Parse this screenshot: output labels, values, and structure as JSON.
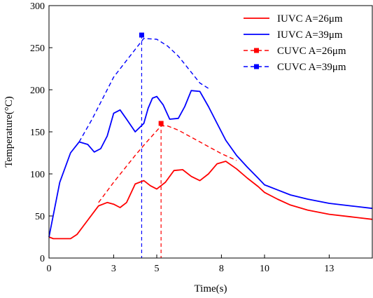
{
  "chart_data": {
    "type": "line",
    "xlabel": "Time(s)",
    "ylabel": "Temperature(°C)",
    "xlim": [
      0,
      15
    ],
    "ylim": [
      0,
      300
    ],
    "x_ticks": [
      0,
      3,
      5,
      8,
      10,
      13
    ],
    "y_ticks": [
      0,
      50,
      100,
      150,
      200,
      250,
      300
    ],
    "grid": false,
    "legend_position": "top-right",
    "series": [
      {
        "name": "IUVC A=26μm",
        "color": "#ff0000",
        "style": "solid",
        "x": [
          0,
          0.2,
          1.0,
          1.3,
          1.8,
          2.3,
          2.7,
          3.0,
          3.3,
          3.6,
          4.0,
          4.4,
          4.7,
          5.0,
          5.4,
          5.8,
          6.2,
          6.6,
          7.0,
          7.4,
          7.8,
          8.2,
          8.7,
          9.2,
          9.7,
          10.0,
          10.6,
          11.2,
          12.0,
          13.0,
          14.0,
          15.0
        ],
        "y": [
          25,
          23,
          23,
          28,
          45,
          62,
          66,
          64,
          60,
          66,
          88,
          92,
          86,
          82,
          90,
          104,
          105,
          97,
          92,
          100,
          112,
          115,
          106,
          95,
          85,
          78,
          70,
          63,
          57,
          52,
          49,
          46
        ]
      },
      {
        "name": "IUVC A=39μm",
        "color": "#0000ff",
        "style": "solid",
        "x": [
          0,
          0.5,
          1.0,
          1.4,
          1.8,
          2.1,
          2.4,
          2.7,
          3.0,
          3.3,
          3.6,
          4.0,
          4.4,
          4.6,
          4.8,
          5.0,
          5.3,
          5.6,
          6.0,
          6.3,
          6.6,
          7.0,
          7.4,
          7.8,
          8.2,
          8.7,
          9.2,
          9.7,
          10.0,
          10.6,
          11.2,
          12.0,
          13.0,
          14.0,
          15.0
        ],
        "y": [
          25,
          90,
          125,
          138,
          135,
          126,
          130,
          145,
          172,
          176,
          165,
          150,
          160,
          178,
          190,
          192,
          182,
          165,
          166,
          180,
          199,
          198,
          180,
          160,
          140,
          122,
          108,
          95,
          87,
          81,
          75,
          70,
          65,
          62,
          59
        ]
      },
      {
        "name": "CUVC A=26μm",
        "color": "#ff0000",
        "style": "dashed",
        "x": [
          2.3,
          3.0,
          4.0,
          4.5,
          5.2,
          5.5,
          6.0,
          7.0,
          8.0,
          8.7
        ],
        "y": [
          66,
          90,
          122,
          137,
          157,
          157,
          152,
          138,
          124,
          116
        ],
        "peak": {
          "x": 5.2,
          "y": 160
        }
      },
      {
        "name": "CUVC A=39μm",
        "color": "#0000ff",
        "style": "dashed",
        "x": [
          1.4,
          2.0,
          3.0,
          4.0,
          4.4,
          5.0,
          5.5,
          6.0,
          7.0,
          7.5
        ],
        "y": [
          138,
          165,
          215,
          248,
          261,
          260,
          252,
          240,
          208,
          200
        ],
        "peak": {
          "x": 4.3,
          "y": 265
        }
      }
    ]
  }
}
